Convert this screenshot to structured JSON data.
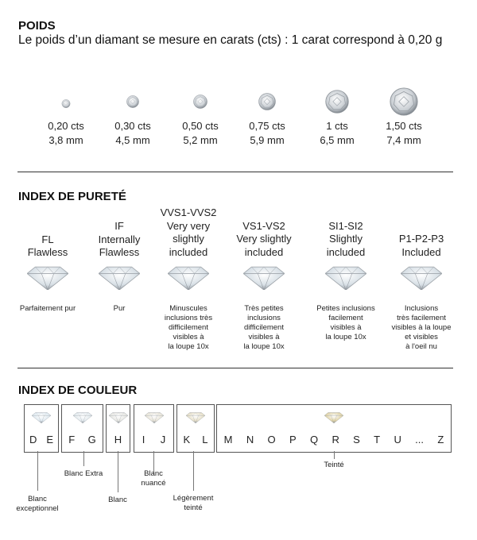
{
  "weight": {
    "title": "POIDS",
    "subtitle": "Le poids d’un diamant se mesure en carats (cts) : 1 carat correspond à 0,20 g",
    "items": [
      {
        "cts": "0,20 cts",
        "mm": "3,8 mm"
      },
      {
        "cts": "0,30 cts",
        "mm": "4,5 mm"
      },
      {
        "cts": "0,50 cts",
        "mm": "5,2 mm"
      },
      {
        "cts": "0,75 cts",
        "mm": "5,9 mm"
      },
      {
        "cts": "1 cts",
        "mm": "6,5 mm"
      },
      {
        "cts": "1,50 cts",
        "mm": "7,4 mm"
      }
    ]
  },
  "clarity": {
    "title": "INDEX DE PURETÉ",
    "items": [
      {
        "l1": "",
        "l2": "FL",
        "l3": "Flawless",
        "desc": [
          "Parfaitement pur"
        ]
      },
      {
        "l1": "IF",
        "l2": "Internally",
        "l3": "Flawless",
        "desc": [
          "Pur"
        ]
      },
      {
        "l1": "VVS1-VVS2",
        "l2": "Very very",
        "l3": "slightly",
        "l4": "included",
        "desc": [
          "Minuscules",
          "inclusions très",
          "difficilement",
          "visibles à",
          "la loupe 10x"
        ]
      },
      {
        "l1": "",
        "l2": "VS1-VS2",
        "l3": "Very slightly",
        "l4": "included",
        "desc": [
          "Très petites",
          "inclusions",
          "difficilement",
          "visibles à",
          "la loupe 10x"
        ]
      },
      {
        "l1": "",
        "l2": "SI1-SI2",
        "l3": "Slightly",
        "l4": "included",
        "desc": [
          "Petites inclusions",
          "facilement",
          "visibles à",
          "la loupe 10x"
        ]
      },
      {
        "l1": "",
        "l2": "",
        "l3": "P1-P2-P3",
        "l4": "Included",
        "desc": [
          "Inclusions",
          "très facilement",
          "visibles à la loupe",
          "et visibles",
          "à l'oeil nu"
        ]
      }
    ]
  },
  "color": {
    "title": "INDEX DE COULEUR",
    "groups": [
      {
        "letters": [
          "D",
          "E"
        ],
        "label": [
          "Blanc",
          "exceptionnel"
        ],
        "tint": "#dfe9f0"
      },
      {
        "letters": [
          "F",
          "G"
        ],
        "label": [
          "Blanc Extra"
        ],
        "tint": "#e3eaee"
      },
      {
        "letters": [
          "H"
        ],
        "label": [
          "Blanc"
        ],
        "tint": "#e6e6e2"
      },
      {
        "letters": [
          "I",
          "J"
        ],
        "label": [
          "Blanc",
          "nuancé"
        ],
        "tint": "#e8e4d8"
      },
      {
        "letters": [
          "K",
          "L"
        ],
        "label": [
          "Légèrement",
          "teinté"
        ],
        "tint": "#e6dfc8"
      },
      {
        "letters": [
          "M",
          "N",
          "O",
          "P",
          "Q",
          "R",
          "S",
          "T",
          "U",
          "...",
          "Z"
        ],
        "label": [
          "Teinté"
        ],
        "tint": "#e0d3a6"
      }
    ]
  }
}
